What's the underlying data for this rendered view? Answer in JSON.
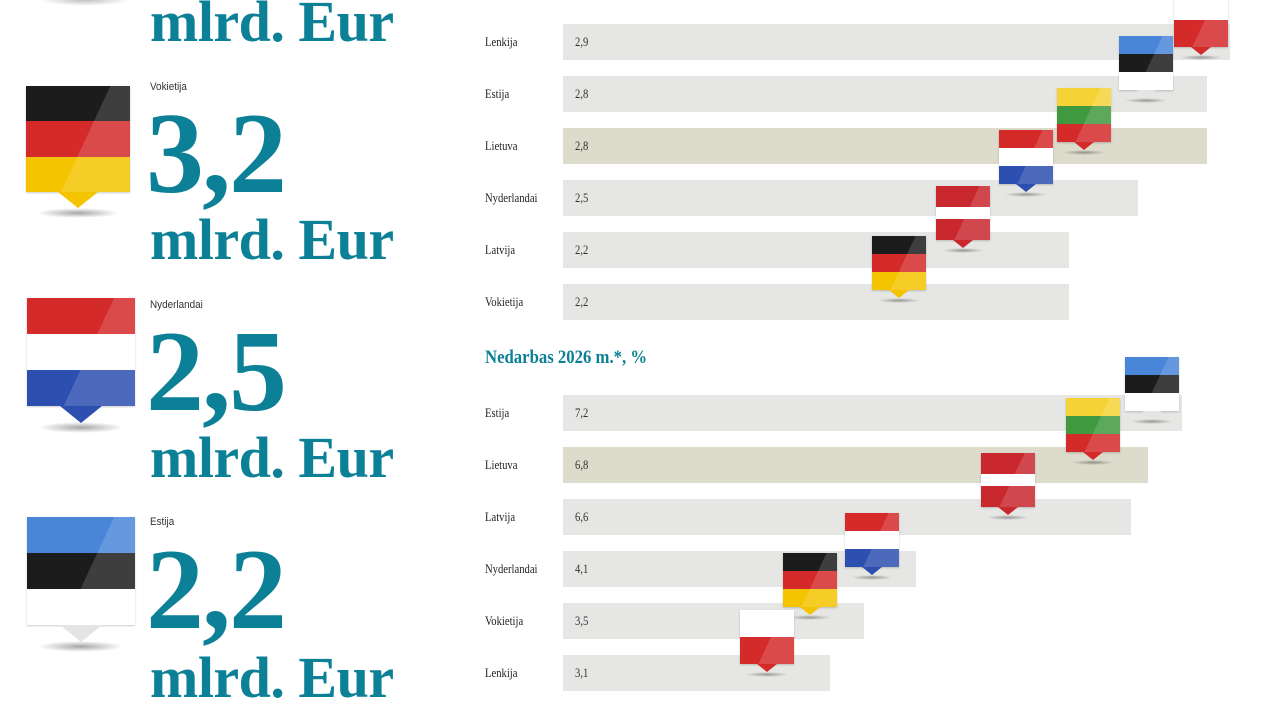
{
  "left_panel": {
    "unit": "mlrd. Eur",
    "cards": [
      {
        "country": "Vokietija",
        "value": "3,2",
        "unit": "mlrd. Eur",
        "flag": "DE"
      },
      {
        "country": "Nyderlandai",
        "value": "2,5",
        "unit": "mlrd. Eur",
        "flag": "NL"
      },
      {
        "country": "Estija",
        "value": "2,2",
        "unit": "mlrd. Eur",
        "flag": "EE"
      }
    ]
  },
  "flags": {
    "PL": [
      "#ffffff",
      "#d42a2a"
    ],
    "EE": [
      "#4a86d8",
      "#1c1c1c",
      "#ffffff"
    ],
    "LT": [
      "#f5d337",
      "#3f9a3f",
      "#d42a2a"
    ],
    "NL": [
      "#d42a2a",
      "#ffffff",
      "#2d4fb0"
    ],
    "LV": [
      "#c8282e",
      "#ffffff",
      "#c8282e"
    ],
    "DE": [
      "#1c1c1c",
      "#d42a2a",
      "#f5c400"
    ]
  },
  "colors": {
    "accent": "#0b8096",
    "bar": "#e6e6e4",
    "bar_highlight": "#dcdbcc"
  },
  "chart_data": [
    {
      "type": "bar",
      "orientation": "horizontal",
      "title": "",
      "categories": [
        "Lenkija",
        "Estija",
        "Lietuva",
        "Nyderlandai",
        "Latvija",
        "Vokietija"
      ],
      "labels": [
        "2,9",
        "2,8",
        "2,8",
        "2,5",
        "2,2",
        "2,2"
      ],
      "values": [
        2.9,
        2.8,
        2.8,
        2.5,
        2.2,
        2.2
      ],
      "flags": [
        "PL",
        "EE",
        "LT",
        "NL",
        "LV",
        "DE"
      ],
      "highlight": "Lietuva"
    },
    {
      "type": "bar",
      "orientation": "horizontal",
      "title": "Nedarbas 2026 m.*, %",
      "categories": [
        "Estija",
        "Lietuva",
        "Latvija",
        "Nyderlandai",
        "Vokietija",
        "Lenkija"
      ],
      "labels": [
        "7,2",
        "6,8",
        "6,6",
        "4,1",
        "3,5",
        "3,1"
      ],
      "values": [
        7.2,
        6.8,
        6.6,
        4.1,
        3.5,
        3.1
      ],
      "flags": [
        "EE",
        "LT",
        "LV",
        "NL",
        "DE",
        "PL"
      ],
      "highlight": "Lietuva"
    }
  ]
}
